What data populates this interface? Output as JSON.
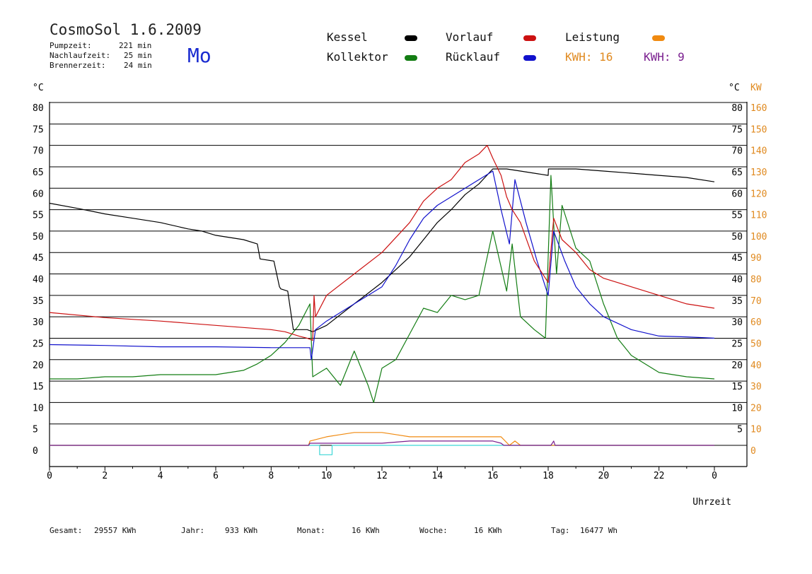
{
  "header": {
    "title": "CosmoSol 1.6.2009",
    "info": [
      {
        "label": "Pumpzeit:",
        "value": "221 min"
      },
      {
        "label": "Nachlaufzeit:",
        "value": "25 min"
      },
      {
        "label": "Brennerzeit:",
        "value": "24 min"
      }
    ],
    "weekday": "Mo"
  },
  "legend": {
    "kessel": "Kessel",
    "kollektor": "Kollektor",
    "vorlauf": "Vorlauf",
    "ruecklauf": "Rücklauf",
    "leistung": "Leistung",
    "kwh_orange": "KWH: 16",
    "kwh_purple": "KWH: 9"
  },
  "colors": {
    "kessel": "#000000",
    "kollektor": "#137d13",
    "vorlauf": "#cc1111",
    "ruecklauf": "#1111cc",
    "leistung": "#f08a10",
    "purple": "#7a1f8f",
    "cyan": "#3cd6d6"
  },
  "footer": {
    "gesamt": {
      "label": "Gesamt:",
      "value": "29557 KWh"
    },
    "jahr": {
      "label": "Jahr:",
      "value": "933 KWh"
    },
    "monat": {
      "label": "Monat:",
      "value": "16 KWh"
    },
    "woche": {
      "label": "Woche:",
      "value": "16 KWh"
    },
    "tag": {
      "label": "Tag:",
      "value": "16477 Wh"
    }
  },
  "chart_data": {
    "type": "line",
    "xlabel": "Uhrzeit",
    "ylabel_left": "°C",
    "ylabel_right_c": "°C",
    "ylabel_right_kw": "KW",
    "xlim": [
      0,
      24
    ],
    "ylim": [
      -5,
      80
    ],
    "x_ticks": [
      "0",
      "2",
      "4",
      "6",
      "8",
      "10",
      "12",
      "14",
      "16",
      "18",
      "20",
      "22",
      "0"
    ],
    "y_ticks_left": [
      "0",
      "5",
      "10",
      "15",
      "20",
      "25",
      "30",
      "35",
      "40",
      "45",
      "50",
      "55",
      "60",
      "65",
      "70",
      "75",
      "80"
    ],
    "y_ticks_right_c": [
      "5",
      "10",
      "15",
      "20",
      "25",
      "30",
      "35",
      "40",
      "45",
      "50",
      "55",
      "60",
      "65",
      "70",
      "75",
      "80"
    ],
    "y_ticks_right_kw": [
      "0",
      "10",
      "20",
      "30",
      "40",
      "50",
      "60",
      "70",
      "80",
      "90",
      "100",
      "110",
      "120",
      "130",
      "140",
      "150",
      "160"
    ],
    "grid": true,
    "series": [
      {
        "name": "Kessel",
        "key": "kessel",
        "x": [
          0,
          1,
          2,
          3,
          4,
          5,
          5.5,
          6,
          7,
          7.5,
          7.6,
          8.1,
          8.3,
          8.35,
          8.6,
          8.8,
          9.0,
          9.3,
          9.5,
          10,
          11,
          12,
          13,
          13.5,
          14,
          14.5,
          15,
          15.5,
          16,
          16.5,
          17,
          18,
          18.01,
          19,
          20,
          21,
          22,
          23,
          24
        ],
        "y": [
          56.5,
          55.3,
          54,
          53,
          52,
          50.5,
          50,
          49,
          48,
          47,
          43.5,
          43,
          37,
          36.5,
          36,
          27,
          27,
          27,
          26.5,
          28,
          33,
          38,
          44,
          48,
          52,
          55,
          58.5,
          61,
          64.5,
          64.5,
          64,
          63,
          64.5,
          64.5,
          64,
          63.5,
          63,
          62.5,
          61.5
        ]
      },
      {
        "name": "Vorlauf",
        "key": "vorlauf",
        "x": [
          0,
          2,
          4,
          6,
          7,
          8,
          8.5,
          9,
          9.3,
          9.5,
          9.55,
          9.6,
          10,
          11,
          12,
          13,
          13.5,
          14,
          14.5,
          15,
          15.5,
          15.8,
          16,
          16.3,
          16.5,
          16.7,
          17,
          17.5,
          18,
          18.2,
          18.5,
          19,
          19.5,
          20,
          21,
          22,
          23,
          24
        ],
        "y": [
          31,
          29.8,
          29,
          28,
          27.5,
          27,
          26.5,
          25.5,
          25,
          24.5,
          35,
          30,
          35,
          40,
          45,
          52,
          57,
          60,
          62,
          66,
          68,
          70,
          67,
          63,
          58,
          55,
          52,
          43,
          38,
          53,
          48,
          45,
          41,
          39,
          37,
          35,
          33,
          32
        ]
      },
      {
        "name": "Rücklauf",
        "key": "ruecklauf",
        "x": [
          0,
          2,
          4,
          6,
          8,
          9.4,
          9.45,
          9.6,
          10,
          11,
          12,
          12.5,
          13,
          13.5,
          14,
          14.5,
          15,
          15.5,
          16,
          16.3,
          16.6,
          16.8,
          17.2,
          17.6,
          18,
          18.2,
          18.6,
          19,
          19.5,
          20,
          20.5,
          21,
          22,
          23,
          24
        ],
        "y": [
          23.5,
          23.3,
          23,
          23,
          22.8,
          22.8,
          20,
          27,
          29,
          33,
          37,
          42,
          48,
          53,
          56,
          58,
          60,
          62,
          64,
          55,
          47,
          62,
          52,
          43,
          35,
          50,
          43,
          37,
          33,
          30,
          28.5,
          27,
          25.5,
          25.3,
          25
        ]
      },
      {
        "name": "Kollektor",
        "key": "kollektor",
        "x": [
          0,
          1,
          2,
          3,
          4,
          5,
          6,
          7,
          7.5,
          8,
          8.5,
          9,
          9.4,
          9.5,
          10,
          10.5,
          11,
          11.5,
          11.7,
          12,
          12.5,
          13,
          13.5,
          14,
          14.5,
          15,
          15.5,
          16,
          16.5,
          16.7,
          17,
          17.5,
          17.9,
          18.1,
          18.3,
          18.5,
          19,
          19.5,
          20,
          20.5,
          21,
          22,
          23,
          24
        ],
        "y": [
          15.5,
          15.5,
          16,
          16,
          16.5,
          16.5,
          16.5,
          17.5,
          19,
          21,
          24,
          28,
          33,
          16,
          18,
          14,
          22,
          14,
          10,
          18,
          20,
          26,
          32,
          31,
          35,
          34,
          35,
          50,
          36,
          47,
          30,
          27,
          25,
          63,
          40,
          56,
          46,
          43,
          33,
          25,
          21,
          17,
          16,
          15.5
        ]
      },
      {
        "name": "Leistung",
        "key": "leistung",
        "x": [
          0,
          9.35,
          9.4,
          10,
          10.5,
          11,
          11.5,
          12,
          12.5,
          13,
          13.5,
          14,
          14.5,
          15,
          15.5,
          16,
          16.3,
          16.6,
          16.8,
          17.0,
          24
        ],
        "y": [
          0,
          0,
          1,
          2,
          2.5,
          3,
          3,
          3,
          2.5,
          2,
          2,
          2,
          2,
          2,
          2,
          2,
          2,
          0,
          1,
          0,
          0
        ]
      },
      {
        "name": "",
        "key": "purple",
        "x": [
          0,
          9.35,
          9.4,
          10,
          11,
          12,
          13,
          14,
          15,
          16,
          16.3,
          16.4,
          18.1,
          18.2,
          18.25,
          24
        ],
        "y": [
          0,
          0,
          0.5,
          0.5,
          0.5,
          0.5,
          1,
          1,
          1,
          1,
          0.5,
          0,
          0,
          1,
          0,
          0
        ]
      },
      {
        "name": "",
        "key": "cyan",
        "x": [
          0,
          9.75,
          9.75,
          10.2,
          10.2,
          24
        ],
        "y": [
          0,
          0,
          -2.2,
          -2.2,
          0,
          0
        ]
      }
    ]
  }
}
